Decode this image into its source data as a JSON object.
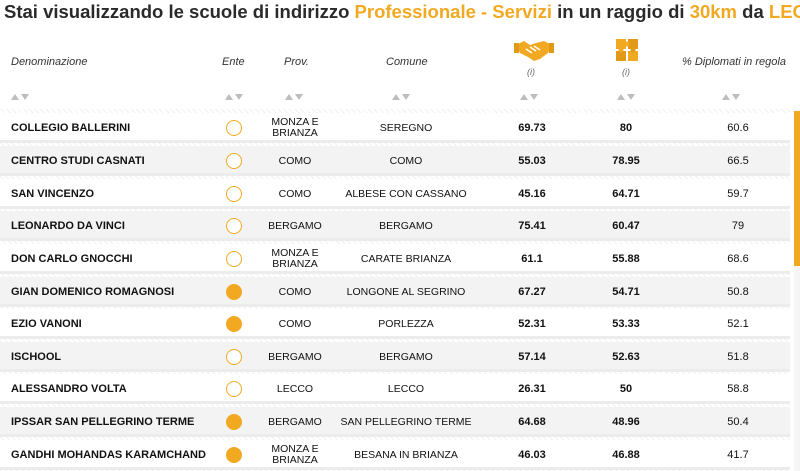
{
  "title": {
    "prefix": "Stai visualizzando le scuole di indirizzo ",
    "indirizzo": "Professionale - Servizi",
    "mid": " in un raggio di ",
    "raggio": "30km",
    "da": " da ",
    "citta": "LECCO"
  },
  "colors": {
    "accent": "#f2a922"
  },
  "columns": {
    "denominazione": "Denominazione",
    "ente": "Ente",
    "prov": "Prov.",
    "comune": "Comune",
    "icon1": "handshake-icon",
    "icon1_info": "(i)",
    "icon2": "puzzle-icon",
    "icon2_info": "(i)",
    "diplomati": "% Diplomati in regola"
  },
  "rows": [
    {
      "name": "COLLEGIO BALLERINI",
      "ente": "private",
      "prov": "MONZA E BRIANZA",
      "comune": "SEREGNO",
      "v1": "69.73",
      "v2": "80",
      "v3": "60.6"
    },
    {
      "name": "CENTRO STUDI CASNATI",
      "ente": "private",
      "prov": "COMO",
      "comune": "COMO",
      "v1": "55.03",
      "v2": "78.95",
      "v3": "66.5"
    },
    {
      "name": "SAN VINCENZO",
      "ente": "private",
      "prov": "COMO",
      "comune": "ALBESE CON CASSANO",
      "v1": "45.16",
      "v2": "64.71",
      "v3": "59.7"
    },
    {
      "name": "LEONARDO DA VINCI",
      "ente": "private",
      "prov": "BERGAMO",
      "comune": "BERGAMO",
      "v1": "75.41",
      "v2": "60.47",
      "v3": "79"
    },
    {
      "name": "DON CARLO GNOCCHI",
      "ente": "private",
      "prov": "MONZA E BRIANZA",
      "comune": "CARATE BRIANZA",
      "v1": "61.1",
      "v2": "55.88",
      "v3": "68.6"
    },
    {
      "name": "GIAN DOMENICO ROMAGNOSI",
      "ente": "public",
      "prov": "COMO",
      "comune": "LONGONE AL SEGRINO",
      "v1": "67.27",
      "v2": "54.71",
      "v3": "50.8"
    },
    {
      "name": "EZIO VANONI",
      "ente": "public",
      "prov": "COMO",
      "comune": "PORLEZZA",
      "v1": "52.31",
      "v2": "53.33",
      "v3": "52.1"
    },
    {
      "name": "ISCHOOL",
      "ente": "private",
      "prov": "BERGAMO",
      "comune": "BERGAMO",
      "v1": "57.14",
      "v2": "52.63",
      "v3": "51.8"
    },
    {
      "name": "ALESSANDRO VOLTA",
      "ente": "private",
      "prov": "LECCO",
      "comune": "LECCO",
      "v1": "26.31",
      "v2": "50",
      "v3": "58.8"
    },
    {
      "name": "IPSSAR SAN PELLEGRINO TERME",
      "ente": "public",
      "prov": "BERGAMO",
      "comune": "SAN PELLEGRINO TERME",
      "v1": "64.68",
      "v2": "48.96",
      "v3": "50.4"
    },
    {
      "name": "GANDHI MOHANDAS KARAMCHAND",
      "ente": "public",
      "prov": "MONZA E BRIANZA",
      "comune": "BESANA IN BRIANZA",
      "v1": "46.03",
      "v2": "46.88",
      "v3": "41.7"
    }
  ]
}
